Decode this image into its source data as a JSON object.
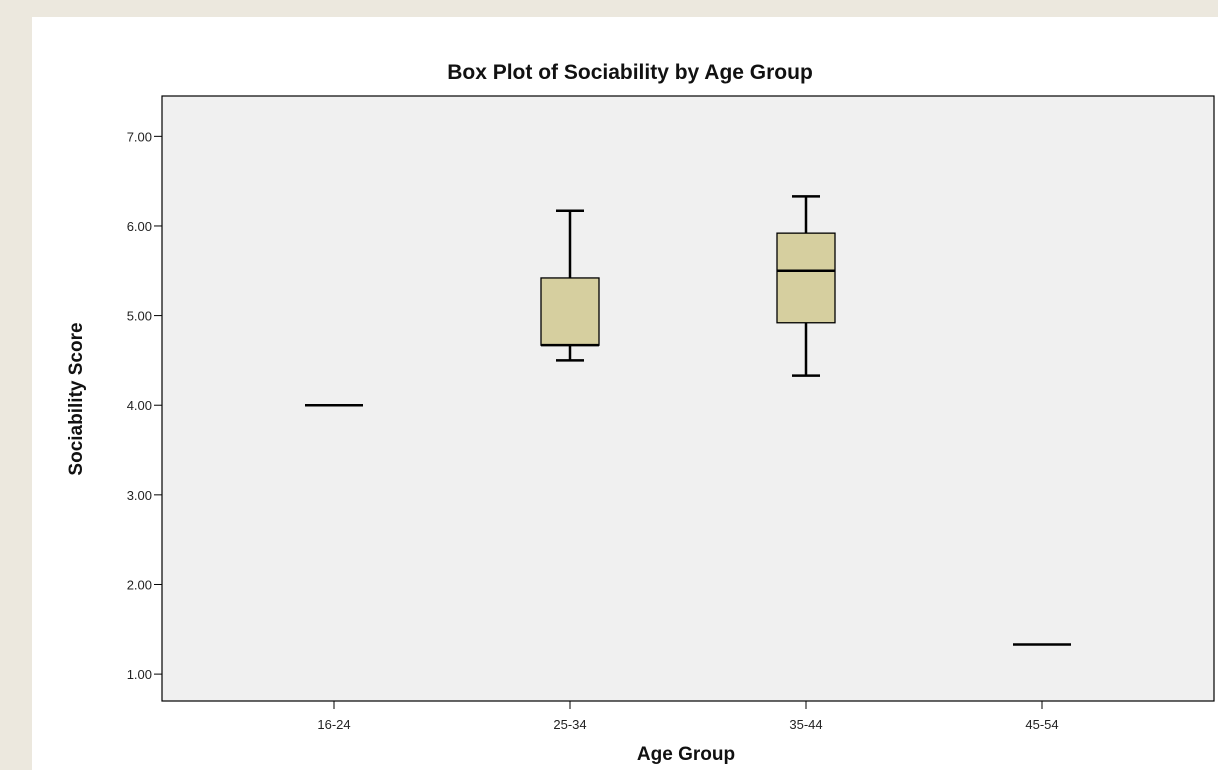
{
  "chart_data": {
    "type": "boxplot",
    "title": "Box Plot of Sociability by Age Group",
    "xlabel": "Age Group",
    "ylabel": "Sociability Score",
    "ylim": [
      0.7,
      7.45
    ],
    "yticks": [
      1.0,
      2.0,
      3.0,
      4.0,
      5.0,
      6.0,
      7.0
    ],
    "ytick_labels": [
      "1.00",
      "2.00",
      "3.00",
      "4.00",
      "5.00",
      "6.00",
      "7.00"
    ],
    "categories": [
      "16-24",
      "25-34",
      "35-44",
      "45-54"
    ],
    "boxes": [
      {
        "category": "16-24",
        "min": 4.0,
        "q1": 4.0,
        "median": 4.0,
        "q3": 4.0,
        "max": 4.0
      },
      {
        "category": "25-34",
        "min": 4.5,
        "q1": 4.67,
        "median": 4.67,
        "q3": 5.42,
        "max": 6.17
      },
      {
        "category": "35-44",
        "min": 4.33,
        "q1": 4.92,
        "median": 5.5,
        "q3": 5.92,
        "max": 6.33
      },
      {
        "category": "45-54",
        "min": 1.33,
        "q1": 1.33,
        "median": 1.33,
        "q3": 1.33,
        "max": 1.33
      }
    ],
    "grid": false,
    "legend": false,
    "colors": {
      "box_fill": "#d6cf9f",
      "plot_background": "#f0f0f0",
      "line": "#000000"
    }
  }
}
